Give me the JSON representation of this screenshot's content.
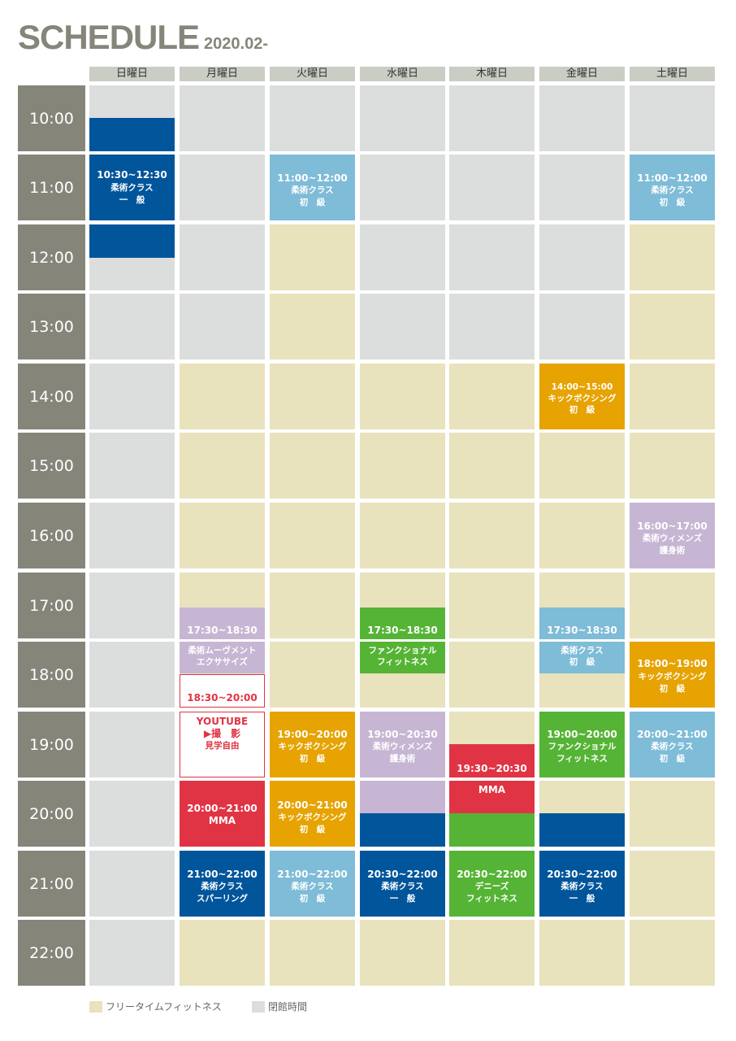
{
  "header": {
    "title": "SCHEDULE",
    "subtitle": "2020.02-"
  },
  "days": [
    "日曜日",
    "月曜日",
    "火曜日",
    "水曜日",
    "木曜日",
    "金曜日",
    "土曜日"
  ],
  "hours": [
    "10:00",
    "11:00",
    "12:00",
    "13:00",
    "14:00",
    "15:00",
    "16:00",
    "17:00",
    "18:00",
    "19:00",
    "20:00",
    "21:00",
    "22:00"
  ],
  "legend": {
    "free": "フリータイムフィットネス",
    "closed": "閉館時間"
  },
  "colors": {
    "navy": "#00559b",
    "light_blue": "#7ebcd7",
    "orange": "#e6a301",
    "lavender": "#c6b6d3",
    "green": "#55b435",
    "red": "#e03444",
    "free": "#e8e2bd",
    "closed": "#dcdddd",
    "time_label": "#85857a"
  },
  "classes": {
    "sun_jujutsu": {
      "time": "10:30~12:30",
      "name": "柔術クラス",
      "level": "一　般"
    },
    "tue_jujutsu_am": {
      "time": "11:00~12:00",
      "name": "柔術クラス",
      "level": "初　級"
    },
    "sat_jujutsu_am": {
      "time": "11:00~12:00",
      "name": "柔術クラス",
      "level": "初　級"
    },
    "fri_kick_pm": {
      "time": "14:00~15:00",
      "name": "キックボクシング",
      "level": "初　級"
    },
    "sat_women": {
      "time": "16:00~17:00",
      "name": "柔術ウィメンズ",
      "level": "護身術"
    },
    "mon_movement": {
      "time": "17:30~18:30",
      "name1": "柔術ムーヴメント",
      "name2": "エクササイズ"
    },
    "wed_functional": {
      "time": "17:30~18:30",
      "name1": "ファンクショナル",
      "name2": "フィットネス"
    },
    "fri_jujutsu_eve": {
      "time": "17:30~18:30",
      "name": "柔術クラス",
      "level": "初　級"
    },
    "sat_kick": {
      "time": "18:00~19:00",
      "name": "キックボクシング",
      "level": "初　級"
    },
    "mon_youtube": {
      "time": "18:30~20:00",
      "line1": "YOUTUBE",
      "line2": "▶撮　影",
      "line3": "見学自由"
    },
    "tue_kick_1": {
      "time": "19:00~20:00",
      "name": "キックボクシング",
      "level": "初　級"
    },
    "wed_women": {
      "time": "19:00~20:30",
      "name": "柔術ウィメンズ",
      "level": "護身術"
    },
    "thu_mma": {
      "time": "19:30~20:30",
      "name": "MMA"
    },
    "fri_functional": {
      "time": "19:00~20:00",
      "name1": "ファンクショナル",
      "name2": "フィットネス"
    },
    "sat_jujutsu_pm": {
      "time": "20:00~21:00",
      "name": "柔術クラス",
      "level": "初　級"
    },
    "mon_mma": {
      "time": "20:00~21:00",
      "name": "MMA"
    },
    "tue_kick_2": {
      "time": "20:00~21:00",
      "name": "キックボクシング",
      "level": "初　級"
    },
    "mon_sparring": {
      "time": "21:00~22:00",
      "name": "柔術クラス",
      "level": "スパーリング"
    },
    "tue_jujutsu_pm": {
      "time": "21:00~22:00",
      "name": "柔術クラス",
      "level": "初　級"
    },
    "wed_jujutsu_pm": {
      "time": "20:30~22:00",
      "name": "柔術クラス",
      "level": "一　般"
    },
    "thu_denise": {
      "time": "20:30~22:00",
      "name1": "デニーズ",
      "name2": "フィットネス"
    },
    "fri_jujutsu_pm": {
      "time": "20:30~22:00",
      "name": "柔術クラス",
      "level": "一　般"
    }
  }
}
